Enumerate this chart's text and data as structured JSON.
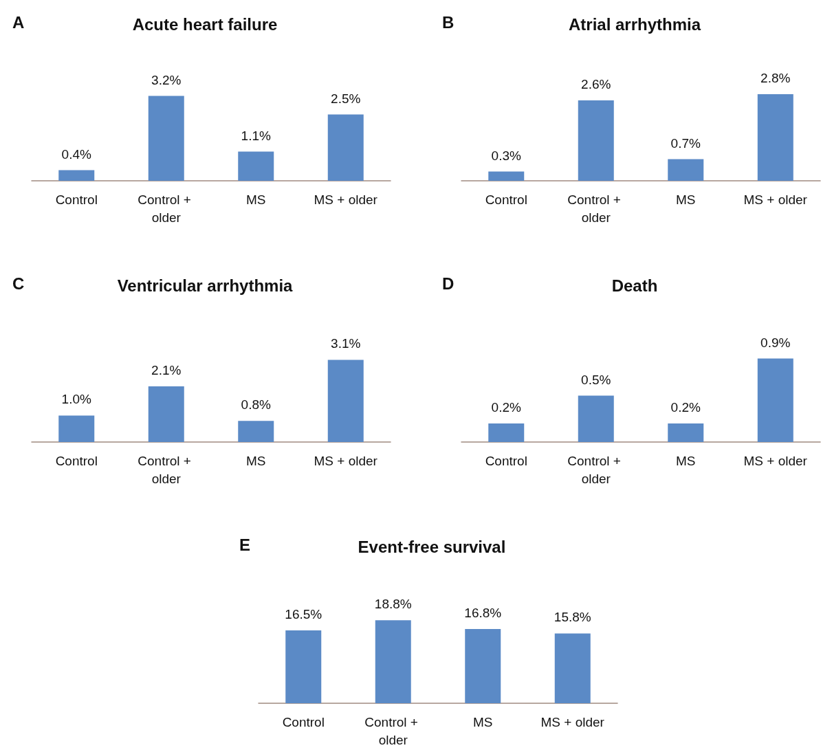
{
  "chart_data": [
    {
      "type": "bar",
      "title": "Acute heart failure",
      "annotations": [
        "A"
      ],
      "categories": [
        "Control",
        "Control + older",
        "MS",
        "MS + older"
      ],
      "values": [
        0.4,
        3.2,
        1.1,
        2.5
      ],
      "value_labels": [
        "0.4%",
        "3.2%",
        "1.1%",
        "2.5%"
      ],
      "color": "#5b8ac6"
    },
    {
      "type": "bar",
      "title": "Atrial arrhythmia",
      "annotations": [
        "B"
      ],
      "categories": [
        "Control",
        "Control + older",
        "MS",
        "MS + older"
      ],
      "values": [
        0.3,
        2.6,
        0.7,
        2.8
      ],
      "value_labels": [
        "0.3%",
        "2.6%",
        "0.7%",
        "2.8%"
      ],
      "color": "#5b8ac6"
    },
    {
      "type": "bar",
      "title": "Ventricular arrhythmia",
      "annotations": [
        "C"
      ],
      "categories": [
        "Control",
        "Control + older",
        "MS",
        "MS + older"
      ],
      "values": [
        1.0,
        2.1,
        0.8,
        3.1
      ],
      "value_labels": [
        "1.0%",
        "2.1%",
        "0.8%",
        "3.1%"
      ],
      "color": "#5b8ac6"
    },
    {
      "type": "bar",
      "title": "Death",
      "annotations": [
        "D"
      ],
      "categories": [
        "Control",
        "Control + older",
        "MS",
        "MS + older"
      ],
      "values": [
        0.2,
        0.5,
        0.2,
        0.9
      ],
      "value_labels": [
        "0.2%",
        "0.5%",
        "0.2%",
        "0.9%"
      ],
      "color": "#5b8ac6"
    },
    {
      "type": "bar",
      "title": "Event-free survival",
      "annotations": [
        "E"
      ],
      "categories": [
        "Control",
        "Control + older",
        "MS",
        "MS + older"
      ],
      "values": [
        16.5,
        18.8,
        16.8,
        15.8
      ],
      "value_labels": [
        "16.5%",
        "18.8%",
        "16.8%",
        "15.8%"
      ],
      "color": "#5b8ac6"
    }
  ]
}
